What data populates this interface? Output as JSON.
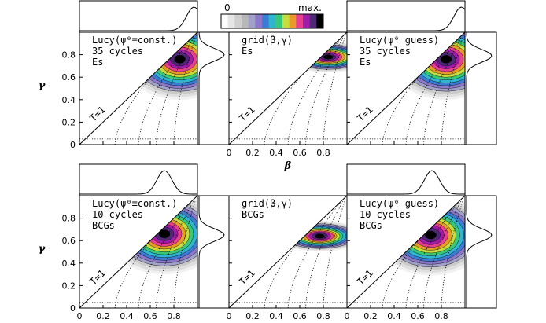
{
  "colorbar": {
    "min_label": "0",
    "max_label": "max.",
    "colors": [
      "#ffffff",
      "#e6e6e6",
      "#cfcfcf",
      "#b8b8b8",
      "#a0a0c8",
      "#8c78c8",
      "#3c7cd4",
      "#30b4d0",
      "#38c878",
      "#c8dc3c",
      "#e89c28",
      "#e84090",
      "#a01ca8",
      "#502878",
      "#000000"
    ]
  },
  "chart_data": [
    {
      "type": "heatmap",
      "panel_title": [
        "Lucy(ψ⁰≡const.)",
        "35 cycles",
        "Es"
      ],
      "xlabel": "",
      "ylabel": "γ",
      "xlim": [
        0,
        1
      ],
      "ylim": [
        0,
        1
      ],
      "xticks": [],
      "yticks": [
        "0",
        "0.2",
        "0.4",
        "0.6",
        "0.8"
      ],
      "line_label": "T=1",
      "peak": [
        0.85,
        0.76
      ]
    },
    {
      "type": "heatmap",
      "panel_title": [
        "grid(β,γ)",
        "Es"
      ],
      "xlabel": "β",
      "ylabel": "",
      "xlim": [
        0,
        1
      ],
      "ylim": [
        0,
        1
      ],
      "xticks": [
        "0",
        "0.2",
        "0.4",
        "0.6",
        "0.8"
      ],
      "yticks": [],
      "line_label": "T=1",
      "peak": [
        0.84,
        0.78
      ]
    },
    {
      "type": "heatmap",
      "panel_title": [
        "Lucy(ψ⁰ guess)",
        "35 cycles",
        "Es"
      ],
      "xlabel": "",
      "ylabel": "",
      "xlim": [
        0,
        1
      ],
      "ylim": [
        0,
        1
      ],
      "xticks": [],
      "yticks": [],
      "line_label": "T=1",
      "peak": [
        0.84,
        0.76
      ]
    },
    {
      "type": "heatmap",
      "panel_title": [
        "Lucy(ψ⁰≡const.)",
        "10 cycles",
        "BCGs"
      ],
      "xlabel": "β",
      "ylabel": "γ",
      "xlim": [
        0,
        1
      ],
      "ylim": [
        0,
        1
      ],
      "xticks": [
        "0",
        "0.2",
        "0.4",
        "0.6",
        "0.8"
      ],
      "yticks": [
        "0",
        "0.2",
        "0.4",
        "0.6",
        "0.8"
      ],
      "line_label": "T=1",
      "peak": [
        0.72,
        0.66
      ]
    },
    {
      "type": "heatmap",
      "panel_title": [
        "grid(β,γ)",
        "BCGs"
      ],
      "xlabel": "β",
      "ylabel": "",
      "xlim": [
        0,
        1
      ],
      "ylim": [
        0,
        1
      ],
      "xticks": [
        "0",
        "0.2",
        "0.4",
        "0.6",
        "0.8"
      ],
      "yticks": [],
      "line_label": "T=1",
      "peak": [
        0.77,
        0.64
      ]
    },
    {
      "type": "heatmap",
      "panel_title": [
        "Lucy(ψ⁰ guess)",
        "10 cycles",
        "BCGs"
      ],
      "xlabel": "β",
      "ylabel": "",
      "xlim": [
        0,
        1
      ],
      "ylim": [
        0,
        1
      ],
      "xticks": [
        "0",
        "0.2",
        "0.4",
        "0.6",
        "0.8"
      ],
      "yticks": [],
      "line_label": "T=1",
      "peak": [
        0.71,
        0.65
      ]
    }
  ],
  "marginals": {
    "beta_top_row": [
      0.97,
      0.97
    ],
    "beta_bottom_row": [
      0.72,
      0.72
    ],
    "gamma_top_row": [
      0.8,
      0.79
    ],
    "gamma_bottom_row": [
      0.65,
      0.65
    ]
  }
}
